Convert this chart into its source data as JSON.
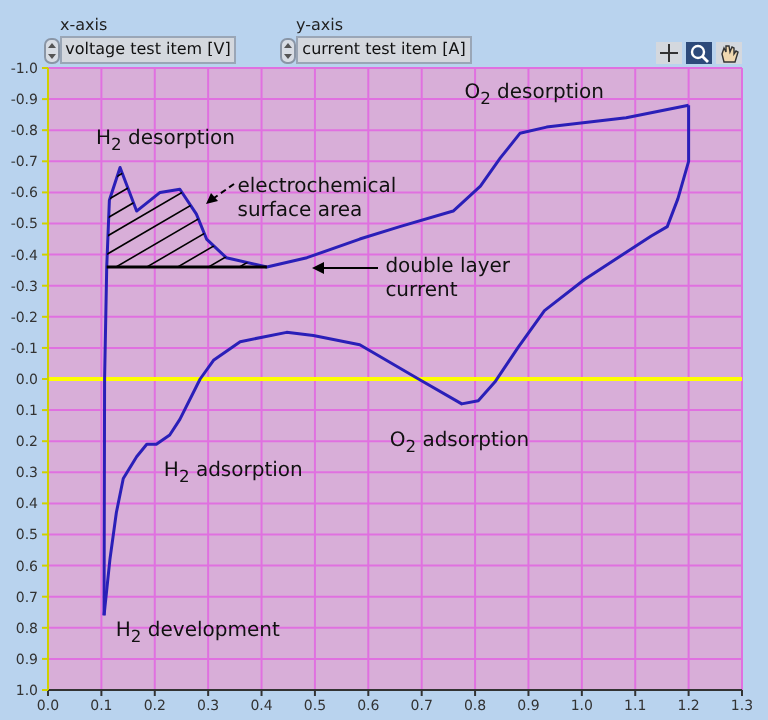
{
  "chart_data": {
    "type": "line",
    "xlabel": "voltage test item [V]",
    "ylabel": "current test item [A]",
    "xlim": [
      0,
      1.3
    ],
    "xticks": [
      {
        "value": 0,
        "label": "0.0"
      },
      {
        "value": 0.1,
        "label": "0.1"
      },
      {
        "value": 0.2,
        "label": "0.2"
      },
      {
        "value": 0.3,
        "label": "0.3"
      },
      {
        "value": 0.4,
        "label": "0.4"
      },
      {
        "value": 0.5,
        "label": "0.5"
      },
      {
        "value": 0.6,
        "label": "0.6"
      },
      {
        "value": 0.7,
        "label": "0.7"
      },
      {
        "value": 0.8,
        "label": "0.8"
      },
      {
        "value": 0.9,
        "label": "0.9"
      },
      {
        "value": 1,
        "label": "1.0"
      },
      {
        "value": 1.1,
        "label": "1.1"
      },
      {
        "value": 1.2,
        "label": "1.2"
      },
      {
        "value": 1.3,
        "label": "1.3"
      }
    ],
    "ylim": [
      1,
      -1
    ],
    "yticks": [
      {
        "value": -1,
        "label": "-1.0"
      },
      {
        "value": -0.9,
        "label": "-0.9"
      },
      {
        "value": -0.8,
        "label": "-0.8"
      },
      {
        "value": -0.7,
        "label": "-0.7"
      },
      {
        "value": -0.6,
        "label": "-0.6"
      },
      {
        "value": -0.5,
        "label": "-0.5"
      },
      {
        "value": -0.4,
        "label": "-0.4"
      },
      {
        "value": -0.3,
        "label": "-0.3"
      },
      {
        "value": -0.2,
        "label": "-0.2"
      },
      {
        "value": -0.1,
        "label": "-0.1"
      },
      {
        "value": 0,
        "label": "0.0"
      },
      {
        "value": 0.1,
        "label": "0.1"
      },
      {
        "value": 0.2,
        "label": "0.2"
      },
      {
        "value": 0.3,
        "label": "0.3"
      },
      {
        "value": 0.4,
        "label": "0.4"
      },
      {
        "value": 0.5,
        "label": "0.5"
      },
      {
        "value": 0.6,
        "label": "0.6"
      },
      {
        "value": 0.7,
        "label": "0.7"
      },
      {
        "value": 0.8,
        "label": "0.8"
      },
      {
        "value": 0.9,
        "label": "0.9"
      },
      {
        "value": 1,
        "label": "1.0"
      }
    ],
    "grid": true,
    "marker": "none",
    "series": [
      {
        "color": "#2a1fb8",
        "x": [
          0.105,
          0.106,
          0.11,
          0.115,
          0.135,
          0.166,
          0.21,
          0.247,
          0.278,
          0.297,
          0.334,
          0.41,
          0.485,
          0.584,
          0.659,
          0.759,
          0.81,
          0.847,
          0.884,
          0.934,
          1.083,
          1.2
        ],
        "values": [
          0.76,
          0,
          -0.36,
          -0.575,
          -0.68,
          -0.54,
          -0.6,
          -0.61,
          -0.53,
          -0.45,
          -0.39,
          -0.36,
          -0.39,
          -0.45,
          -0.49,
          -0.54,
          -0.62,
          -0.71,
          -0.79,
          -0.81,
          -0.84,
          -0.88
        ]
      },
      {
        "color": "#2a1fb8",
        "x": [
          1.2,
          1.2,
          1.18,
          1.16,
          1.13,
          1.005,
          0.93,
          0.88,
          0.837,
          0.806,
          0.775,
          0.694,
          0.584,
          0.497,
          0.447,
          0.36,
          0.31,
          0.285,
          0.247,
          0.228,
          0.203,
          0.185,
          0.166,
          0.141,
          0.128,
          0.116,
          0.105
        ],
        "values": [
          -0.88,
          -0.7,
          -0.58,
          -0.49,
          -0.46,
          -0.32,
          -0.22,
          -0.1,
          0.01,
          0.07,
          0.08,
          0,
          -0.11,
          -0.14,
          -0.15,
          -0.12,
          -0.06,
          0,
          0.13,
          0.18,
          0.21,
          0.21,
          0.25,
          0.32,
          0.43,
          0.58,
          0.76
        ]
      },
      {
        "type": "line",
        "color": "#000000",
        "x": [
          0.11,
          0.41
        ],
        "values": [
          -0.36,
          -0.36
        ]
      }
    ],
    "ref_lines": [
      {
        "axis": "y",
        "value": 0,
        "color": "#ffff00"
      }
    ],
    "annotations": [
      "x-axis",
      "y-axis",
      "O$_{2}$ desorption",
      "H$_{2}$ desorption",
      "electrochemical\nsurface area",
      "double layer\ncurrent",
      "O$_{2}$ adsorption",
      "H$_{2}$ adsorption",
      "H$_{2}$ development"
    ]
  }
}
